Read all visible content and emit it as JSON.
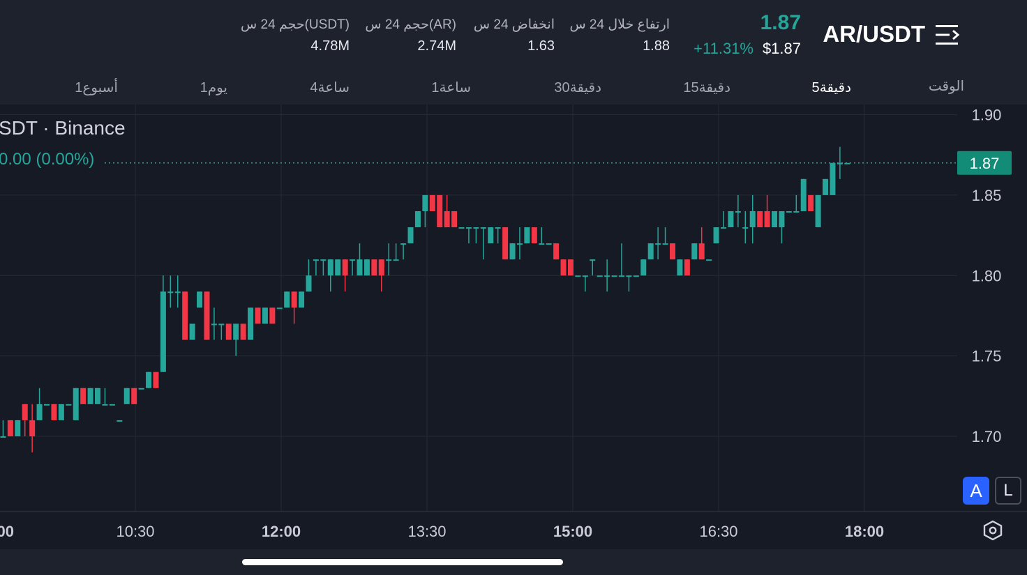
{
  "header": {
    "symbol": "AR/USDT",
    "price": "1.87",
    "price_usd": "$1.87",
    "change_pct": "+11.31%",
    "stats": [
      {
        "label": "ارتفاع خلال 24 س",
        "value": "1.88"
      },
      {
        "label": "انخفاض 24 س",
        "value": "1.63"
      },
      {
        "label": "حجم 24 س(AR)",
        "value": "2.74M"
      },
      {
        "label": "حجم 24 س(USDT)",
        "value": "4.78M"
      }
    ]
  },
  "timeframes": {
    "label": "الوقت",
    "items": [
      "5دقيقة",
      "15دقيقة",
      "30دقيقة",
      "1ساعة",
      "4ساعة",
      "1يوم",
      "1أسبوع"
    ],
    "active": "5دقيقة"
  },
  "chart": {
    "legend_title": "SDT · Binance",
    "legend_change": "0.00 (0.00%)",
    "last_price_label": "1.87",
    "scale_auto": "A",
    "scale_log": "L",
    "settings_icon": "settings-hex-icon"
  },
  "chart_data": {
    "type": "candlestick",
    "y_ticks": [
      "1.90",
      "1.85",
      "1.80",
      "1.75",
      "1.70"
    ],
    "x_ticks": [
      "00",
      "10:30",
      "12:00",
      "13:30",
      "15:00",
      "16:30",
      "18:00"
    ],
    "x_ticks_bold": [
      "00",
      "12:00",
      "15:00",
      "18:00"
    ],
    "ylim": [
      1.6532,
      1.9063
    ],
    "last_price": 1.87,
    "up_color": "#26a69a",
    "down_color": "#f23645",
    "candles": [
      [
        1.7,
        1.7,
        1.68,
        1.69
      ],
      [
        1.7,
        1.71,
        1.7,
        1.7
      ],
      [
        1.71,
        1.71,
        1.7,
        1.7
      ],
      [
        1.7,
        1.71,
        1.7,
        1.71
      ],
      [
        1.72,
        1.72,
        1.7,
        1.71
      ],
      [
        1.71,
        1.72,
        1.69,
        1.7
      ],
      [
        1.71,
        1.73,
        1.71,
        1.72
      ],
      [
        1.72,
        1.72,
        1.72,
        1.72
      ],
      [
        1.72,
        1.72,
        1.71,
        1.71
      ],
      [
        1.71,
        1.72,
        1.71,
        1.72
      ],
      [
        1.72,
        1.72,
        1.72,
        1.72
      ],
      [
        1.71,
        1.73,
        1.71,
        1.73
      ],
      [
        1.73,
        1.73,
        1.72,
        1.72
      ],
      [
        1.72,
        1.73,
        1.72,
        1.73
      ],
      [
        1.72,
        1.73,
        1.72,
        1.73
      ],
      [
        1.72,
        1.73,
        1.72,
        1.72
      ],
      [
        1.72,
        1.72,
        1.72,
        1.72
      ],
      [
        1.71,
        1.71,
        1.71,
        1.71
      ],
      [
        1.72,
        1.73,
        1.72,
        1.73
      ],
      [
        1.73,
        1.73,
        1.72,
        1.72
      ],
      [
        1.73,
        1.73,
        1.73,
        1.73
      ],
      [
        1.73,
        1.74,
        1.73,
        1.74
      ],
      [
        1.74,
        1.74,
        1.73,
        1.73
      ],
      [
        1.74,
        1.8,
        1.74,
        1.79
      ],
      [
        1.79,
        1.8,
        1.78,
        1.79
      ],
      [
        1.79,
        1.8,
        1.78,
        1.79
      ],
      [
        1.79,
        1.79,
        1.76,
        1.76
      ],
      [
        1.76,
        1.77,
        1.76,
        1.77
      ],
      [
        1.78,
        1.79,
        1.78,
        1.79
      ],
      [
        1.79,
        1.79,
        1.76,
        1.76
      ],
      [
        1.77,
        1.78,
        1.76,
        1.77
      ],
      [
        1.77,
        1.77,
        1.76,
        1.77
      ],
      [
        1.77,
        1.77,
        1.76,
        1.76
      ],
      [
        1.76,
        1.77,
        1.75,
        1.77
      ],
      [
        1.77,
        1.77,
        1.76,
        1.76
      ],
      [
        1.76,
        1.78,
        1.76,
        1.78
      ],
      [
        1.78,
        1.78,
        1.77,
        1.77
      ],
      [
        1.77,
        1.78,
        1.77,
        1.78
      ],
      [
        1.78,
        1.78,
        1.77,
        1.77
      ],
      [
        1.78,
        1.78,
        1.78,
        1.78
      ],
      [
        1.78,
        1.79,
        1.78,
        1.79
      ],
      [
        1.79,
        1.79,
        1.77,
        1.78
      ],
      [
        1.78,
        1.79,
        1.78,
        1.79
      ],
      [
        1.79,
        1.81,
        1.79,
        1.8
      ],
      [
        1.81,
        1.81,
        1.8,
        1.81
      ],
      [
        1.81,
        1.81,
        1.8,
        1.81
      ],
      [
        1.8,
        1.81,
        1.79,
        1.81
      ],
      [
        1.8,
        1.81,
        1.8,
        1.81
      ],
      [
        1.81,
        1.81,
        1.79,
        1.8
      ],
      [
        1.81,
        1.81,
        1.8,
        1.81
      ],
      [
        1.8,
        1.82,
        1.8,
        1.81
      ],
      [
        1.8,
        1.81,
        1.8,
        1.81
      ],
      [
        1.81,
        1.81,
        1.8,
        1.8
      ],
      [
        1.81,
        1.81,
        1.79,
        1.8
      ],
      [
        1.81,
        1.82,
        1.8,
        1.81
      ],
      [
        1.81,
        1.82,
        1.81,
        1.81
      ],
      [
        1.82,
        1.82,
        1.81,
        1.82
      ],
      [
        1.82,
        1.83,
        1.82,
        1.83
      ],
      [
        1.83,
        1.84,
        1.83,
        1.84
      ],
      [
        1.84,
        1.85,
        1.83,
        1.85
      ],
      [
        1.85,
        1.85,
        1.84,
        1.84
      ],
      [
        1.85,
        1.85,
        1.83,
        1.83
      ],
      [
        1.84,
        1.85,
        1.83,
        1.83
      ],
      [
        1.84,
        1.84,
        1.83,
        1.83
      ],
      [
        1.83,
        1.83,
        1.83,
        1.83
      ],
      [
        1.83,
        1.83,
        1.82,
        1.83
      ],
      [
        1.83,
        1.83,
        1.82,
        1.83
      ],
      [
        1.83,
        1.83,
        1.81,
        1.83
      ],
      [
        1.82,
        1.83,
        1.82,
        1.83
      ],
      [
        1.83,
        1.83,
        1.82,
        1.83
      ],
      [
        1.83,
        1.83,
        1.81,
        1.81
      ],
      [
        1.81,
        1.82,
        1.81,
        1.82
      ],
      [
        1.82,
        1.83,
        1.81,
        1.82
      ],
      [
        1.82,
        1.83,
        1.82,
        1.83
      ],
      [
        1.83,
        1.83,
        1.82,
        1.82
      ],
      [
        1.82,
        1.83,
        1.82,
        1.82
      ],
      [
        1.82,
        1.82,
        1.82,
        1.82
      ],
      [
        1.82,
        1.82,
        1.81,
        1.81
      ],
      [
        1.81,
        1.81,
        1.8,
        1.8
      ],
      [
        1.81,
        1.81,
        1.8,
        1.8
      ],
      [
        1.8,
        1.8,
        1.8,
        1.8
      ],
      [
        1.8,
        1.8,
        1.79,
        1.8
      ],
      [
        1.81,
        1.81,
        1.8,
        1.81
      ],
      [
        1.8,
        1.8,
        1.8,
        1.8
      ],
      [
        1.8,
        1.81,
        1.79,
        1.8
      ],
      [
        1.8,
        1.8,
        1.8,
        1.8
      ],
      [
        1.8,
        1.82,
        1.8,
        1.8
      ],
      [
        1.8,
        1.8,
        1.79,
        1.8
      ],
      [
        1.8,
        1.8,
        1.8,
        1.8
      ],
      [
        1.8,
        1.81,
        1.8,
        1.81
      ],
      [
        1.81,
        1.82,
        1.81,
        1.82
      ],
      [
        1.82,
        1.83,
        1.81,
        1.82
      ],
      [
        1.82,
        1.83,
        1.82,
        1.82
      ],
      [
        1.82,
        1.82,
        1.81,
        1.81
      ],
      [
        1.8,
        1.81,
        1.8,
        1.81
      ],
      [
        1.81,
        1.81,
        1.8,
        1.8
      ],
      [
        1.81,
        1.82,
        1.81,
        1.82
      ],
      [
        1.82,
        1.83,
        1.81,
        1.81
      ],
      [
        1.81,
        1.81,
        1.81,
        1.81
      ],
      [
        1.82,
        1.83,
        1.82,
        1.83
      ],
      [
        1.83,
        1.84,
        1.83,
        1.83
      ],
      [
        1.83,
        1.84,
        1.83,
        1.84
      ],
      [
        1.84,
        1.85,
        1.83,
        1.84
      ],
      [
        1.83,
        1.84,
        1.82,
        1.83
      ],
      [
        1.83,
        1.85,
        1.82,
        1.84
      ],
      [
        1.84,
        1.84,
        1.83,
        1.83
      ],
      [
        1.84,
        1.85,
        1.83,
        1.83
      ],
      [
        1.83,
        1.84,
        1.83,
        1.84
      ],
      [
        1.83,
        1.84,
        1.82,
        1.84
      ],
      [
        1.84,
        1.84,
        1.84,
        1.84
      ],
      [
        1.84,
        1.85,
        1.84,
        1.84
      ],
      [
        1.84,
        1.86,
        1.84,
        1.86
      ],
      [
        1.85,
        1.85,
        1.84,
        1.84
      ],
      [
        1.83,
        1.85,
        1.83,
        1.85
      ],
      [
        1.85,
        1.86,
        1.85,
        1.86
      ],
      [
        1.85,
        1.87,
        1.85,
        1.87
      ],
      [
        1.87,
        1.88,
        1.86,
        1.87
      ],
      [
        1.87,
        1.87,
        1.87,
        1.87
      ]
    ]
  }
}
